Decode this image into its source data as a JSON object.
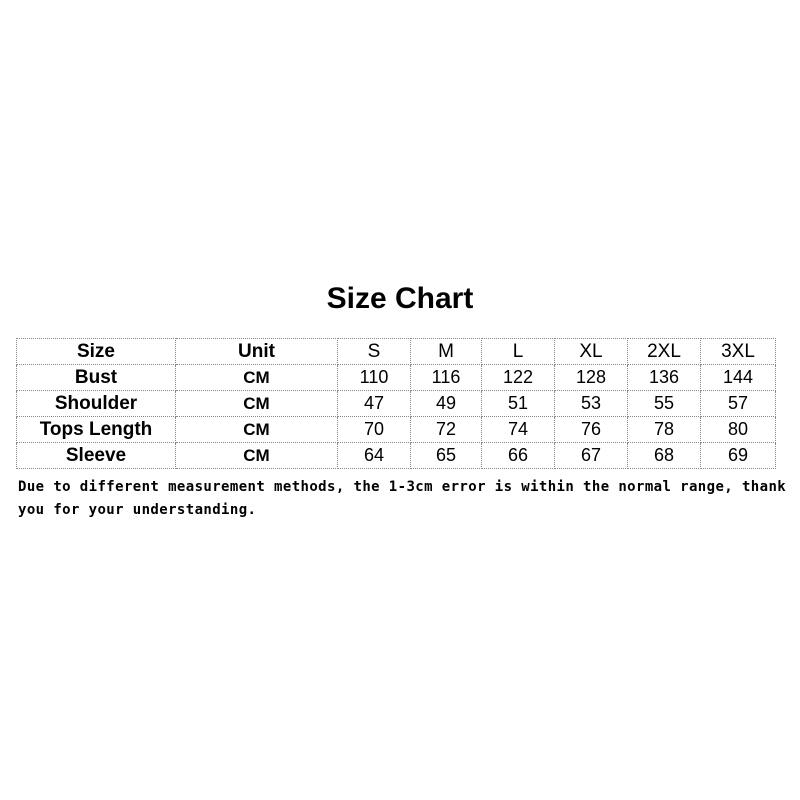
{
  "title": "Size Chart",
  "table": {
    "headers": [
      "Size",
      "Unit",
      "S",
      "M",
      "L",
      "XL",
      "2XL",
      "3XL"
    ],
    "rows": [
      {
        "label": "Bust",
        "unit": "CM",
        "values": [
          "110",
          "116",
          "122",
          "128",
          "136",
          "144"
        ]
      },
      {
        "label": "Shoulder",
        "unit": "CM",
        "values": [
          "47",
          "49",
          "51",
          "53",
          "55",
          "57"
        ]
      },
      {
        "label": "Tops Length",
        "unit": "CM",
        "values": [
          "70",
          "72",
          "74",
          "76",
          "78",
          "80"
        ]
      },
      {
        "label": "Sleeve",
        "unit": "CM",
        "values": [
          "64",
          "65",
          "66",
          "67",
          "68",
          "69"
        ]
      }
    ]
  },
  "note": "Due to different measurement methods, the 1-3cm error is within the normal range, thank you for your understanding."
}
